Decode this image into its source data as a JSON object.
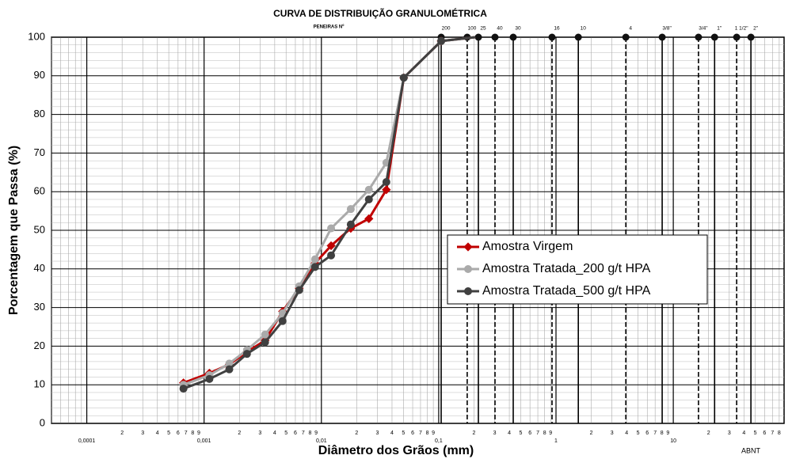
{
  "chart_data": {
    "type": "line",
    "title": "CURVA DE DISTRIBUIÇÃO GRANULOMÉTRICA",
    "x_label": "Diâmetro dos Grãos (mm)",
    "y_label": "Porcentagem que Passa (%)",
    "sieve_title": "PENEIRAS Nº",
    "standard_label": "ABNT",
    "x": [
      0.000667,
      0.00111,
      0.00164,
      0.00232,
      0.00331,
      0.00467,
      0.00647,
      0.00883,
      0.0121,
      0.0178,
      0.0254,
      0.0358,
      0.0504,
      0.105,
      0.205
    ],
    "series": [
      {
        "name": "Amostra Virgem",
        "color": "#c00000",
        "values": [
          10.5,
          13,
          15.3,
          18.5,
          21.5,
          29,
          35,
          41.5,
          46,
          50.5,
          53,
          60.5,
          89.5,
          99,
          100
        ]
      },
      {
        "name": "Amostra Tratada_200 g/t HPA",
        "color": "#aaaaaa",
        "values": [
          10,
          12.5,
          15.5,
          19,
          23,
          28.5,
          35.5,
          42.5,
          50.5,
          55.5,
          60.5,
          67.5,
          89.5,
          99,
          100
        ]
      },
      {
        "name": "Amostra Tratada_500 g/t HPA",
        "color": "#404040",
        "values": [
          9,
          11.5,
          14,
          18,
          21,
          26.5,
          34.5,
          40.5,
          43.5,
          51.5,
          58,
          62.5,
          89.5,
          99,
          100
        ]
      }
    ],
    "sieves": [
      {
        "label": "200",
        "size": 0.105
      },
      {
        "label": "100",
        "size": 0.175
      },
      {
        "label": "25",
        "size": 0.218
      },
      {
        "label": "40",
        "size": 0.302
      },
      {
        "label": "30",
        "size": 0.432
      },
      {
        "label": "16",
        "size": 0.925
      },
      {
        "label": "10",
        "size": 1.55
      },
      {
        "label": "4",
        "size": 3.94
      },
      {
        "label": "3/8\"",
        "size": 8.04
      },
      {
        "label": "3/4\"",
        "size": 16.4
      },
      {
        "label": "1\"",
        "size": 22.5
      },
      {
        "label": "1 1/2\"",
        "size": 34.7
      },
      {
        "label": "2\"",
        "size": 45.9
      }
    ],
    "xscale": "log",
    "xlim": [
      5e-05,
      88
    ],
    "xticks": [
      {
        "value": 0.0001,
        "label": "0,0001"
      },
      {
        "value": 0.001,
        "label": "0,001"
      },
      {
        "value": 0.01,
        "label": "0,01"
      },
      {
        "value": 0.1,
        "label": "0,1"
      },
      1,
      10
    ],
    "minor_tick_labels": [
      "2",
      "3",
      "4",
      "5",
      "6",
      "7",
      "8",
      "9"
    ],
    "ylim": [
      0,
      100
    ],
    "yticks": [
      0,
      10,
      20,
      30,
      40,
      50,
      60,
      70,
      80,
      90,
      100
    ],
    "grid": true,
    "legend": "lower right"
  }
}
